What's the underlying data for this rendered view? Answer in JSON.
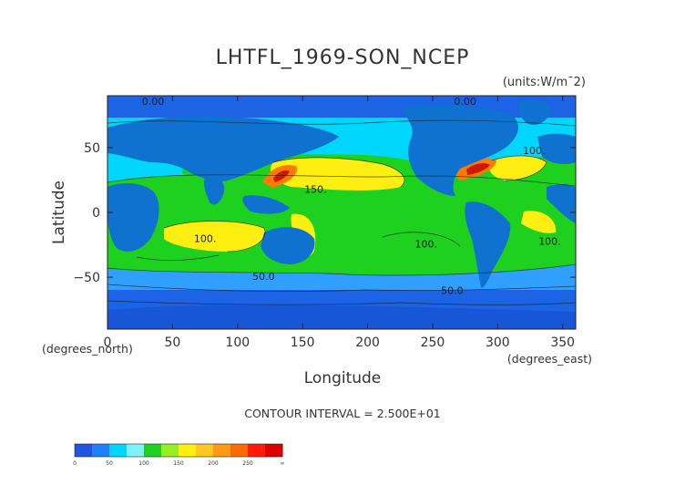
{
  "chart_data": {
    "type": "heatmap",
    "title": "LHTFL_1969-SON_NCEP",
    "units": "(units:W/m¯2)",
    "xlabel": "Longitude",
    "ylabel": "Latitude",
    "x_unit": "(degrees_east)",
    "y_unit": "(degrees_north)",
    "xlim": [
      0,
      360
    ],
    "ylim": [
      -90,
      90
    ],
    "x_ticks": [
      0,
      50,
      100,
      150,
      200,
      250,
      300,
      350
    ],
    "y_ticks": [
      -50,
      0,
      50
    ],
    "contour_interval_label": "CONTOUR INTERVAL = 2.500E+01",
    "contour_labels": [
      {
        "text": "0.00",
        "lon": 35,
        "lat": 83
      },
      {
        "text": "0.00",
        "lon": 275,
        "lat": 83
      },
      {
        "text": "100.",
        "lon": 328,
        "lat": 45
      },
      {
        "text": "150.",
        "lon": 160,
        "lat": 15
      },
      {
        "text": "100.",
        "lon": 75,
        "lat": -23
      },
      {
        "text": "100.",
        "lon": 245,
        "lat": -27
      },
      {
        "text": "100.",
        "lon": 340,
        "lat": -25
      },
      {
        "text": "50.0",
        "lon": 120,
        "lat": -52
      },
      {
        "text": "50.0",
        "lon": 265,
        "lat": -63
      }
    ],
    "colorbar": {
      "levels": [
        0,
        25,
        50,
        75,
        100,
        125,
        150,
        175,
        200,
        225,
        250,
        275
      ],
      "colors": [
        "#2155e0",
        "#1f7fff",
        "#00d6ff",
        "#7ff2ff",
        "#1fd11f",
        "#99ee22",
        "#ffee11",
        "#ffc820",
        "#ff9a14",
        "#ff6a00",
        "#ff1a0a",
        "#dd0000"
      ],
      "tick_labels": [
        "0",
        "50",
        "100",
        "150",
        "200",
        "250",
        "∞"
      ]
    },
    "colors": {
      "land": "#0f72d0",
      "ocean_low": "#00d6ff",
      "ocean_mid": "#1fd11f",
      "ocean_high": "#ffee11",
      "hot": "#ff7a00",
      "hottest": "#cc1a00"
    }
  }
}
